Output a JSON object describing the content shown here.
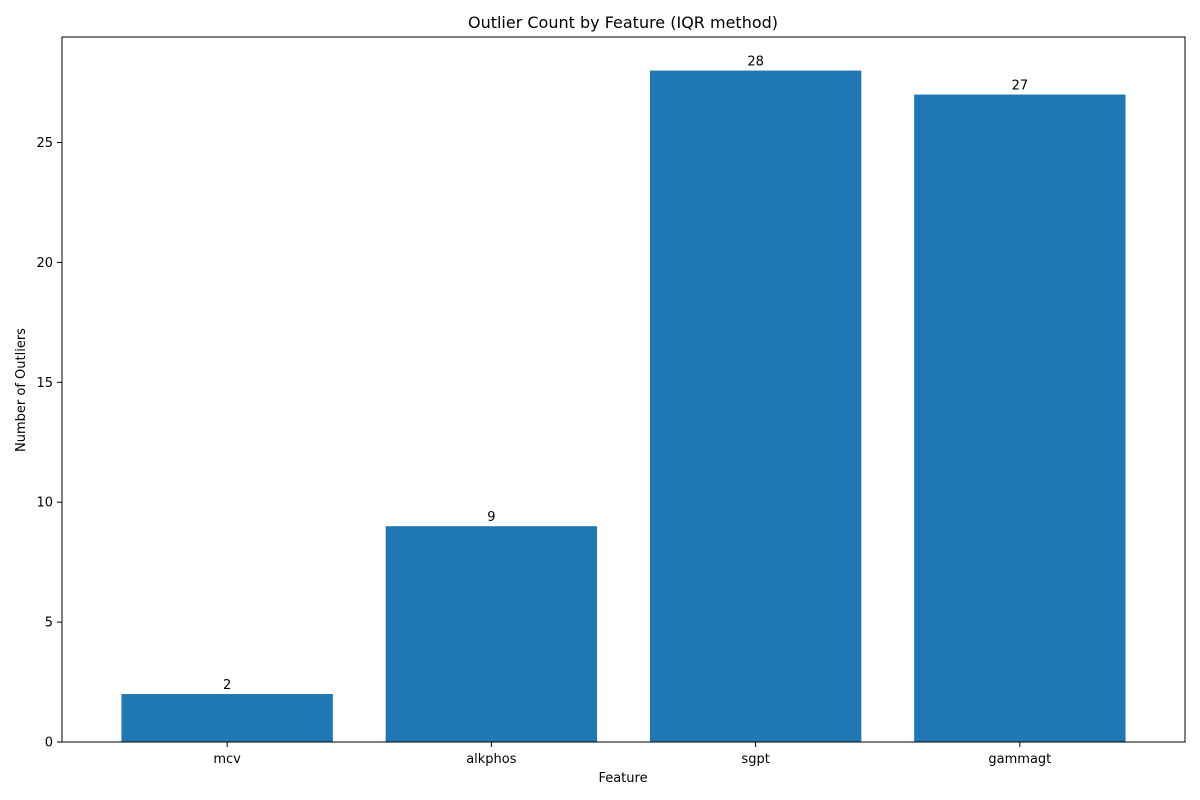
{
  "chart_data": {
    "type": "bar",
    "title": "Outlier Count by Feature (IQR method)",
    "xlabel": "Feature",
    "ylabel": "Number of Outliers",
    "categories": [
      "mcv",
      "alkphos",
      "sgpt",
      "gammagt"
    ],
    "values": [
      2,
      9,
      28,
      27
    ],
    "data_labels": [
      "2",
      "9",
      "28",
      "27"
    ],
    "yticks": [
      0,
      5,
      10,
      15,
      20,
      25
    ],
    "ylim": [
      0,
      29.4
    ],
    "grid": false,
    "legend": "none",
    "bar_color": "#1f77b4"
  }
}
